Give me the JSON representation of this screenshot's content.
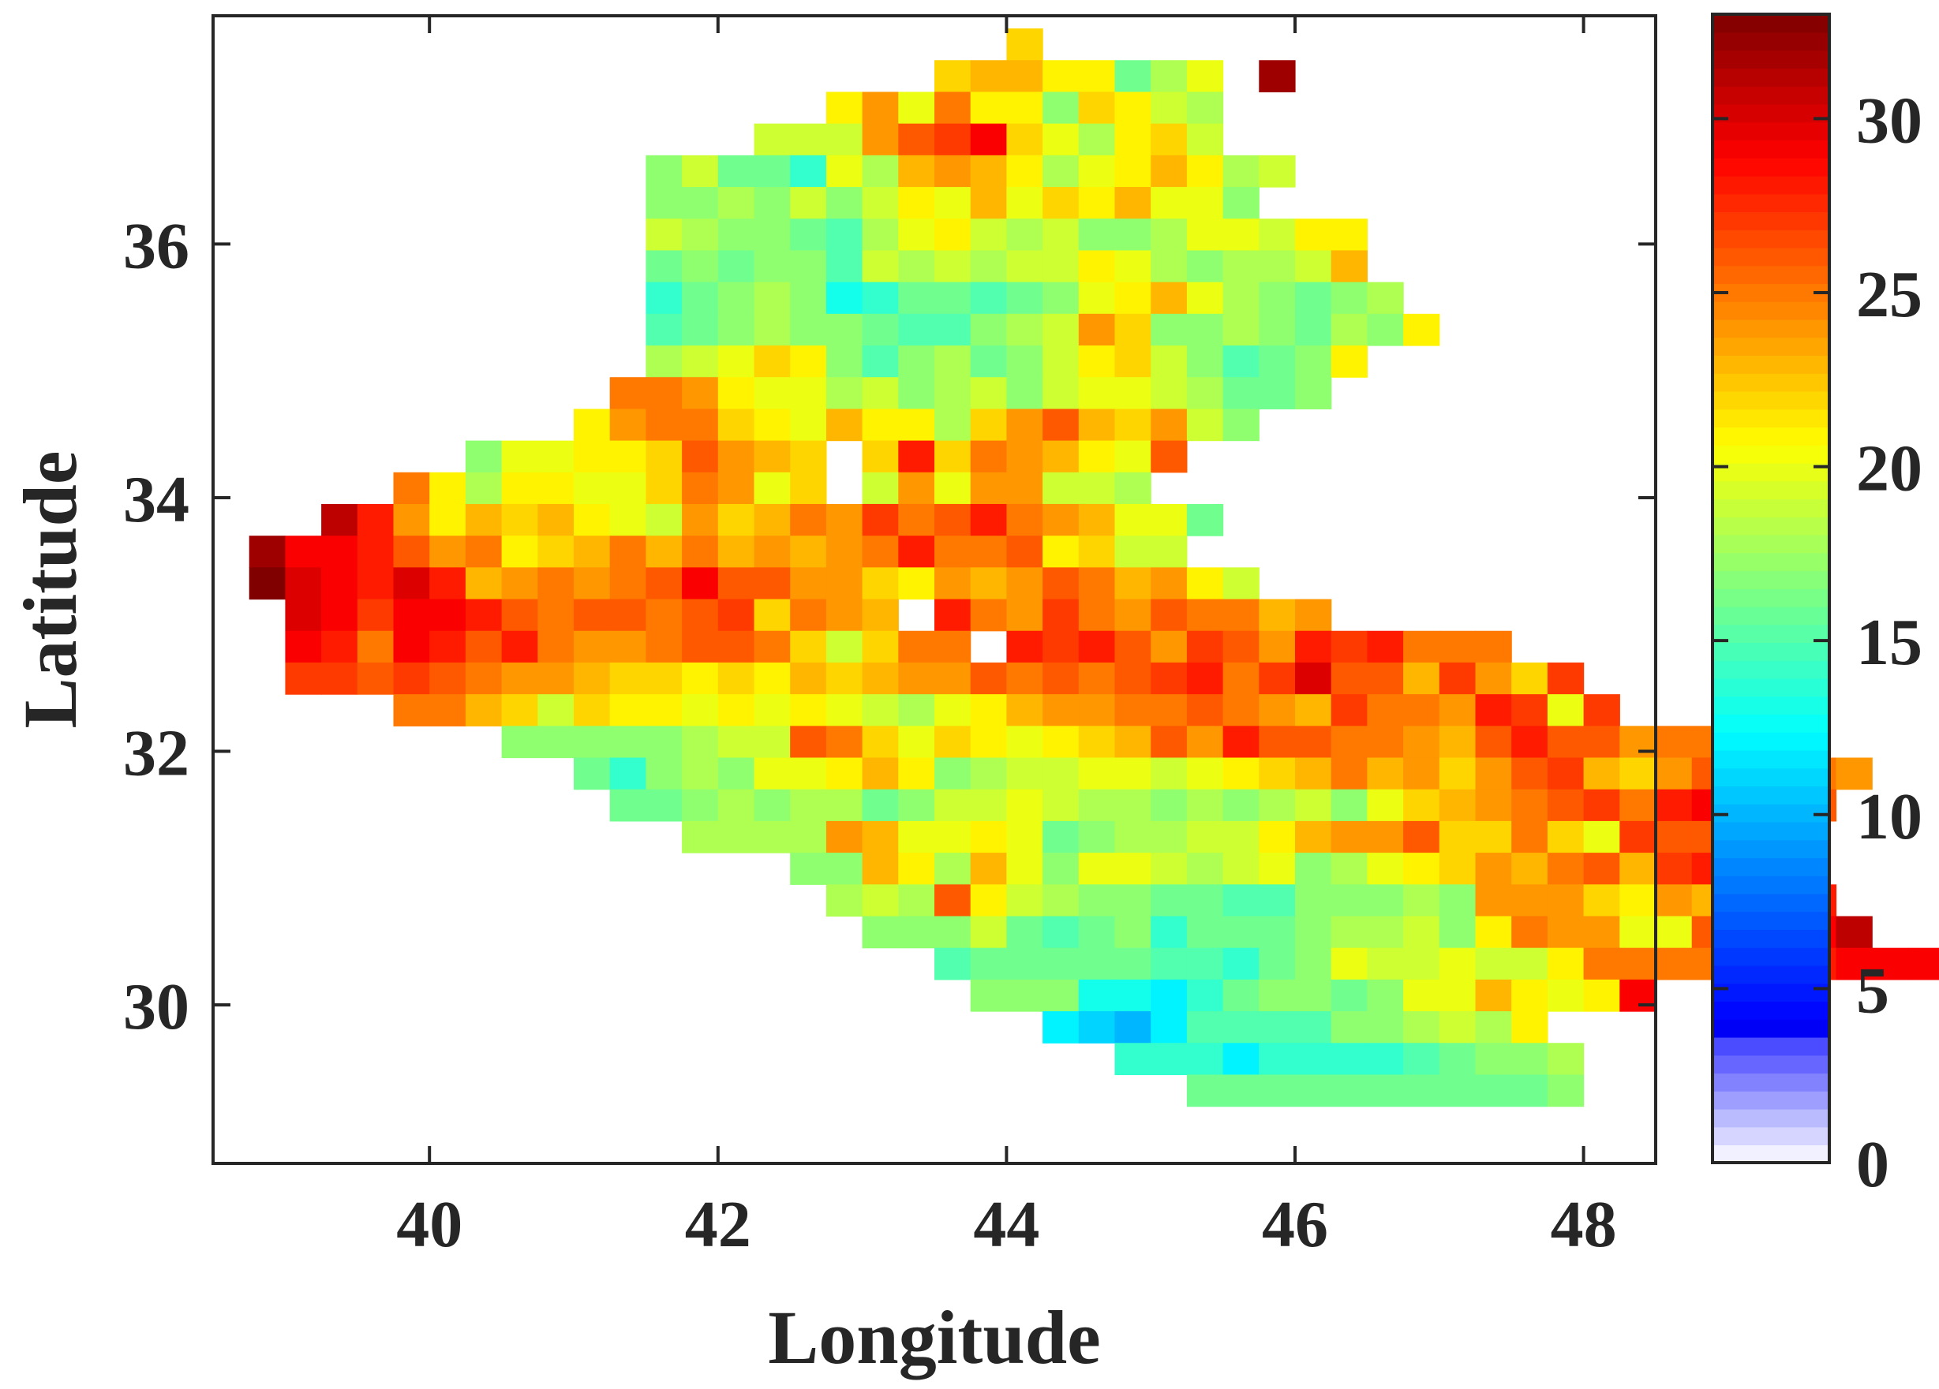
{
  "chart_data": {
    "type": "heatmap",
    "xlabel": "Longitude",
    "ylabel": "Latitude",
    "xlim": [
      38.5,
      48.5
    ],
    "ylim": [
      28.75,
      37.8
    ],
    "xticks": [
      40,
      42,
      44,
      46,
      48
    ],
    "yticks": [
      30,
      32,
      34,
      36
    ],
    "grid": false,
    "colorbar": {
      "range": [
        0,
        33
      ],
      "ticks": [
        0,
        5,
        10,
        15,
        20,
        25,
        30
      ],
      "colormap": "jet with light-violet low end"
    },
    "grid_origin": {
      "lon": 38.75,
      "lat": 28.95
    },
    "cell_size_deg": 0.25,
    "rows": [
      {
        "row": 34,
        "start": 21,
        "values": [
          22
        ]
      },
      {
        "row": 33,
        "start": 19,
        "values": [
          22,
          23,
          23,
          21,
          21,
          16,
          18,
          20,
          0,
          32
        ]
      },
      {
        "row": 32,
        "start": 16,
        "values": [
          21,
          24,
          20,
          25,
          21,
          21,
          17,
          22,
          21,
          19,
          18
        ]
      },
      {
        "row": 31,
        "start": 14,
        "values": [
          19,
          19,
          19,
          24,
          26,
          27,
          29,
          22,
          20,
          18,
          21,
          22,
          19
        ]
      },
      {
        "row": 30,
        "start": 11,
        "values": [
          17,
          19,
          16,
          16,
          14,
          20,
          18,
          23,
          24,
          23,
          21,
          18,
          20,
          21,
          23,
          21,
          18,
          19
        ]
      },
      {
        "row": 29,
        "start": 11,
        "values": [
          17,
          17,
          18,
          17,
          19,
          17,
          19,
          21,
          20,
          23,
          20,
          22,
          21,
          23,
          20,
          20,
          17
        ]
      },
      {
        "row": 28,
        "start": 11,
        "values": [
          19,
          18,
          17,
          17,
          16,
          15,
          18,
          20,
          21,
          19,
          18,
          19,
          17,
          17,
          18,
          20,
          20,
          19,
          21,
          21
        ]
      },
      {
        "row": 27,
        "start": 11,
        "values": [
          16,
          17,
          16,
          17,
          17,
          15,
          19,
          18,
          19,
          18,
          19,
          19,
          21,
          20,
          18,
          17,
          18,
          18,
          19,
          23
        ]
      },
      {
        "row": 26,
        "start": 11,
        "values": [
          14,
          16,
          17,
          18,
          17,
          13,
          14,
          16,
          16,
          15,
          16,
          17,
          20,
          21,
          23,
          20,
          18,
          17,
          16,
          17,
          18
        ]
      },
      {
        "row": 25,
        "start": 11,
        "values": [
          15,
          16,
          17,
          18,
          17,
          17,
          16,
          15,
          15,
          17,
          18,
          19,
          24,
          22,
          17,
          17,
          18,
          17,
          16,
          18,
          17,
          21
        ]
      },
      {
        "row": 24,
        "start": 11,
        "values": [
          18,
          19,
          20,
          22,
          21,
          17,
          15,
          17,
          18,
          16,
          17,
          19,
          21,
          22,
          19,
          17,
          15,
          16,
          17,
          21
        ]
      },
      {
        "row": 23,
        "start": 10,
        "values": [
          25,
          25,
          24,
          21,
          20,
          20,
          18,
          19,
          17,
          18,
          19,
          17,
          19,
          20,
          20,
          19,
          18,
          16,
          16,
          17
        ]
      },
      {
        "row": 22,
        "start": 9,
        "values": [
          21,
          24,
          25,
          25,
          22,
          21,
          20,
          23,
          21,
          21,
          18,
          22,
          24,
          26,
          23,
          22,
          24,
          19,
          17
        ]
      },
      {
        "row": 21,
        "start": 6,
        "values": [
          17,
          20,
          20,
          21,
          21,
          22,
          26,
          24,
          23,
          22,
          0,
          22,
          28,
          22,
          25,
          24,
          23,
          21,
          20,
          26
        ]
      },
      {
        "row": 20,
        "start": 4,
        "values": [
          25,
          21,
          18,
          21,
          21,
          20,
          20,
          22,
          25,
          24,
          20,
          22,
          0,
          19,
          24,
          20,
          24,
          24,
          19,
          19,
          18
        ]
      },
      {
        "row": 19,
        "start": 2,
        "values": [
          31,
          28,
          24,
          21,
          23,
          22,
          23,
          21,
          20,
          19,
          24,
          22,
          23,
          25,
          24,
          27,
          25,
          26,
          28,
          25,
          24,
          23,
          20,
          20,
          16
        ]
      },
      {
        "row": 18,
        "start": 0,
        "values": [
          32,
          29,
          29,
          28,
          26,
          24,
          25,
          21,
          22,
          23,
          25,
          23,
          25,
          23,
          24,
          23,
          24,
          25,
          28,
          25,
          25,
          26,
          21,
          22,
          19,
          19
        ]
      },
      {
        "row": 17,
        "start": 0,
        "values": [
          33,
          30,
          29,
          28,
          30,
          28,
          23,
          24,
          25,
          24,
          25,
          26,
          29,
          26,
          26,
          24,
          24,
          22,
          21,
          24,
          23,
          24,
          26,
          25,
          23,
          24,
          21,
          19
        ]
      },
      {
        "row": 16,
        "start": 1,
        "values": [
          30,
          29,
          27,
          29,
          29,
          28,
          26,
          25,
          26,
          26,
          25,
          26,
          27,
          22,
          25,
          24,
          23,
          0,
          28,
          25,
          24,
          27,
          25,
          24,
          26,
          25,
          25,
          23,
          24
        ]
      },
      {
        "row": 15,
        "start": 1,
        "values": [
          29,
          28,
          25,
          29,
          28,
          26,
          28,
          25,
          24,
          24,
          25,
          26,
          26,
          25,
          22,
          19,
          22,
          25,
          25,
          0,
          28,
          27,
          28,
          26,
          24,
          27,
          26,
          24,
          28,
          27,
          28,
          25,
          25,
          25
        ]
      },
      {
        "row": 14,
        "start": 1,
        "values": [
          27,
          27,
          26,
          27,
          26,
          25,
          24,
          24,
          23,
          22,
          22,
          21,
          22,
          21,
          23,
          22,
          23,
          24,
          24,
          26,
          25,
          26,
          25,
          26,
          27,
          28,
          25,
          27,
          30,
          26,
          26,
          23,
          27,
          24,
          22,
          27
        ]
      },
      {
        "row": 13,
        "start": 4,
        "values": [
          25,
          25,
          23,
          22,
          19,
          22,
          21,
          21,
          20,
          21,
          20,
          21,
          20,
          19,
          18,
          20,
          21,
          23,
          24,
          24,
          25,
          25,
          26,
          25,
          24,
          23,
          27,
          25,
          25,
          24,
          28,
          27,
          20,
          27
        ]
      },
      {
        "row": 12,
        "start": 7,
        "values": [
          17,
          17,
          17,
          17,
          17,
          18,
          19,
          19,
          26,
          25,
          22,
          20,
          22,
          21,
          20,
          21,
          22,
          23,
          26,
          24,
          28,
          26,
          26,
          25,
          25,
          24,
          23,
          26,
          28,
          26,
          26,
          24,
          25,
          25,
          25,
          24
        ]
      },
      {
        "row": 11,
        "start": 9,
        "values": [
          16,
          14,
          17,
          18,
          17,
          20,
          20,
          21,
          23,
          21,
          17,
          18,
          19,
          19,
          20,
          20,
          19,
          20,
          21,
          22,
          23,
          25,
          23,
          24,
          22,
          24,
          26,
          27,
          23,
          22,
          24,
          26,
          28,
          27,
          25,
          24
        ]
      },
      {
        "row": 10,
        "start": 10,
        "values": [
          16,
          16,
          17,
          18,
          17,
          18,
          18,
          16,
          17,
          19,
          19,
          20,
          19,
          18,
          18,
          17,
          18,
          17,
          18,
          19,
          17,
          20,
          22,
          23,
          24,
          25,
          26,
          27,
          25,
          28,
          29,
          28,
          27,
          26
        ]
      },
      {
        "row": 9,
        "start": 12,
        "values": [
          18,
          18,
          18,
          18,
          24,
          23,
          20,
          20,
          21,
          20,
          16,
          17,
          18,
          18,
          19,
          19,
          21,
          23,
          24,
          24,
          26,
          22,
          22,
          25,
          22,
          20,
          27,
          26,
          26,
          31
        ]
      },
      {
        "row": 8,
        "start": 15,
        "values": [
          17,
          17,
          23,
          21,
          18,
          23,
          20,
          17,
          20,
          20,
          19,
          18,
          19,
          20,
          17,
          18,
          20,
          21,
          22,
          24,
          23,
          25,
          26,
          23,
          27,
          28,
          27,
          29
        ]
      },
      {
        "row": 7,
        "start": 16,
        "values": [
          18,
          19,
          18,
          26,
          21,
          19,
          18,
          17,
          17,
          16,
          16,
          15,
          15,
          17,
          17,
          17,
          18,
          17,
          24,
          24,
          24,
          22,
          21,
          24,
          23,
          28,
          28,
          28
        ]
      },
      {
        "row": 6,
        "start": 17,
        "values": [
          17,
          17,
          17,
          19,
          16,
          15,
          16,
          17,
          14,
          16,
          16,
          16,
          17,
          18,
          18,
          19,
          17,
          21,
          25,
          24,
          24,
          20,
          20,
          26,
          27,
          28,
          29,
          31
        ]
      },
      {
        "row": 5,
        "start": 19,
        "values": [
          15,
          16,
          16,
          16,
          16,
          16,
          15,
          15,
          14,
          16,
          17,
          20,
          19,
          19,
          20,
          19,
          19,
          21,
          25,
          25,
          25,
          25,
          26,
          27,
          28,
          29,
          29,
          29
        ]
      },
      {
        "row": 4,
        "start": 20,
        "values": [
          17,
          17,
          17,
          13,
          13,
          12,
          14,
          16,
          17,
          17,
          16,
          17,
          20,
          20,
          23,
          21,
          20,
          21,
          29
        ]
      },
      {
        "row": 3,
        "start": 22,
        "values": [
          12,
          11,
          10,
          12,
          15,
          15,
          15,
          15,
          17,
          17,
          18,
          19,
          18,
          21
        ]
      },
      {
        "row": 2,
        "start": 24,
        "values": [
          14,
          14,
          14,
          12,
          14,
          14,
          14,
          14,
          15,
          16,
          17,
          17,
          18
        ]
      },
      {
        "row": 1,
        "start": 26,
        "values": [
          16,
          16,
          16,
          16,
          16,
          16,
          16,
          16,
          16,
          16,
          17
        ]
      }
    ]
  }
}
